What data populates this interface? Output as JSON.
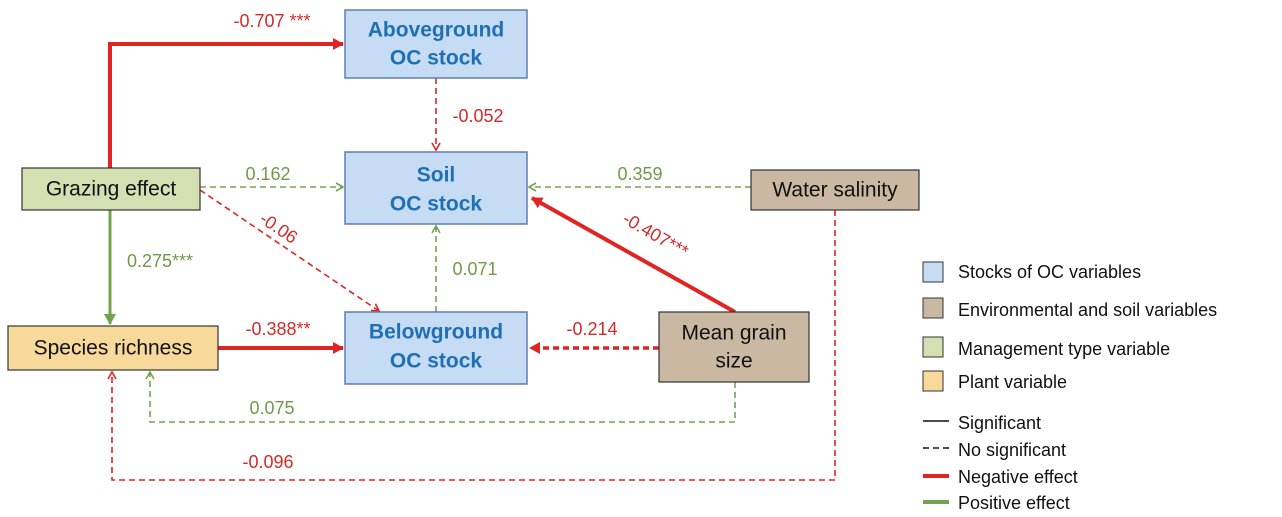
{
  "nodes": [
    {
      "lines": [
        "Aboveground",
        "OC stock"
      ]
    },
    {
      "lines": [
        "Soil",
        "OC stock"
      ]
    },
    {
      "lines": [
        "Belowground",
        "OC stock"
      ]
    },
    {
      "lines": [
        "Grazing effect"
      ]
    },
    {
      "lines": [
        "Species richness"
      ]
    },
    {
      "lines": [
        "Water salinity"
      ]
    },
    {
      "lines": [
        "Mean grain",
        "size"
      ]
    }
  ],
  "edges": [
    {
      "label": "-0.707 ***"
    },
    {
      "label": "-0.052"
    },
    {
      "label": "0.162"
    },
    {
      "label": "-0.06"
    },
    {
      "label": "0.071"
    },
    {
      "label": "0.359"
    },
    {
      "label": "-0.407***"
    },
    {
      "label": "0.275***"
    },
    {
      "label": "-0.388**"
    },
    {
      "label": "-0.214"
    },
    {
      "label": "0.075"
    },
    {
      "label": "-0.096"
    }
  ],
  "legend": [
    {
      "label": "Stocks of OC variables"
    },
    {
      "label": "Environmental and soil variables"
    },
    {
      "label": "Management type variable"
    },
    {
      "label": "Plant variable"
    },
    {
      "label": "Significant"
    },
    {
      "label": "No significant"
    },
    {
      "label": "Negative effect"
    },
    {
      "label": "Positive effect"
    }
  ]
}
